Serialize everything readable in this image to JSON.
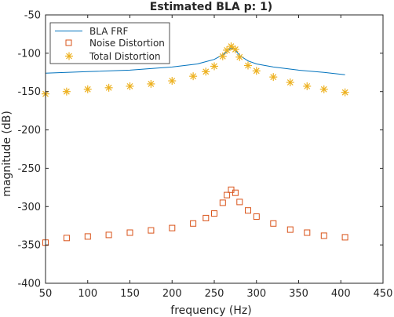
{
  "chart_data": {
    "type": "line",
    "title": "Estimated BLA p: 1)",
    "xlabel": "frequency (Hz)",
    "ylabel": "magnitude (dB)",
    "xlim": [
      50,
      450
    ],
    "ylim": [
      -400,
      -50
    ],
    "xticks": [
      50,
      100,
      150,
      200,
      250,
      300,
      350,
      400,
      450
    ],
    "yticks": [
      -400,
      -350,
      -300,
      -250,
      -200,
      -150,
      -100,
      -50
    ],
    "xtick_labels": [
      "50",
      "100",
      "150",
      "200",
      "250",
      "300",
      "350",
      "400",
      "450"
    ],
    "ytick_labels": [
      "-400",
      "-350",
      "-300",
      "-250",
      "-200",
      "-150",
      "-100",
      "-50"
    ],
    "grid": false,
    "legend_position": "top-left",
    "series": [
      {
        "name": "BLA FRF",
        "marker": "line",
        "color": "#0072BD",
        "x": [
          50,
          100,
          150,
          200,
          230,
          250,
          260,
          265,
          270,
          275,
          280,
          290,
          300,
          320,
          350,
          380,
          405
        ],
        "y": [
          -126,
          -124,
          -122,
          -118,
          -114,
          -108,
          -102,
          -98,
          -93,
          -96,
          -103,
          -110,
          -114,
          -118,
          -122,
          -125,
          -128
        ]
      },
      {
        "name": "Noise Distortion",
        "marker": "square",
        "color": "#D95319",
        "x": [
          50,
          75,
          100,
          125,
          150,
          175,
          200,
          225,
          240,
          250,
          260,
          265,
          270,
          275,
          280,
          290,
          300,
          320,
          340,
          360,
          380,
          405
        ],
        "y": [
          -347,
          -341,
          -339,
          -337,
          -334,
          -331,
          -328,
          -322,
          -315,
          -309,
          -295,
          -285,
          -278,
          -282,
          -294,
          -305,
          -313,
          -322,
          -330,
          -334,
          -338,
          -340
        ]
      },
      {
        "name": "Total Distortion",
        "marker": "star",
        "color": "#EDB120",
        "x": [
          50,
          75,
          100,
          125,
          150,
          175,
          200,
          225,
          240,
          250,
          260,
          265,
          270,
          275,
          280,
          290,
          300,
          320,
          340,
          360,
          380,
          405
        ],
        "y": [
          -153,
          -150,
          -147,
          -145,
          -143,
          -140,
          -136,
          -130,
          -124,
          -117,
          -104,
          -96,
          -91,
          -95,
          -105,
          -116,
          -123,
          -131,
          -138,
          -143,
          -147,
          -151
        ]
      }
    ]
  }
}
